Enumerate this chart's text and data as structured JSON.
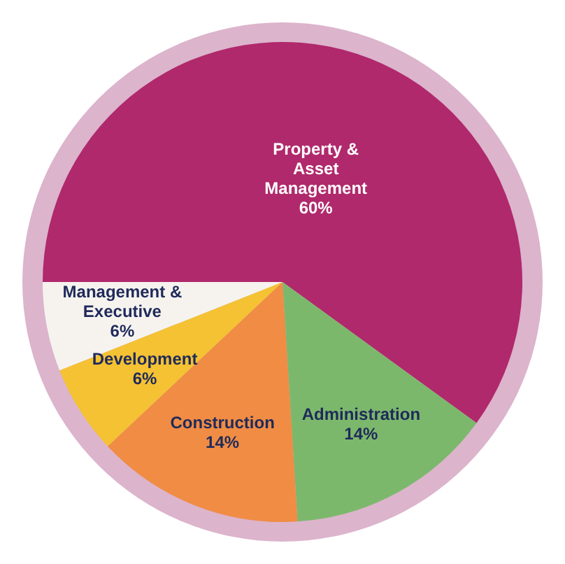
{
  "chart_data": {
    "type": "pie",
    "categories": [
      "Property & Asset Management",
      "Administration",
      "Construction",
      "Development",
      "Management & Executive"
    ],
    "values": [
      60,
      14,
      14,
      6,
      6
    ],
    "colors": [
      "#b0296c",
      "#7cb86c",
      "#f08c44",
      "#f4c232",
      "#f6f3ef"
    ],
    "value_labels": [
      "60%",
      "14%",
      "14%",
      "6%",
      "6%"
    ],
    "legend": false
  }
}
